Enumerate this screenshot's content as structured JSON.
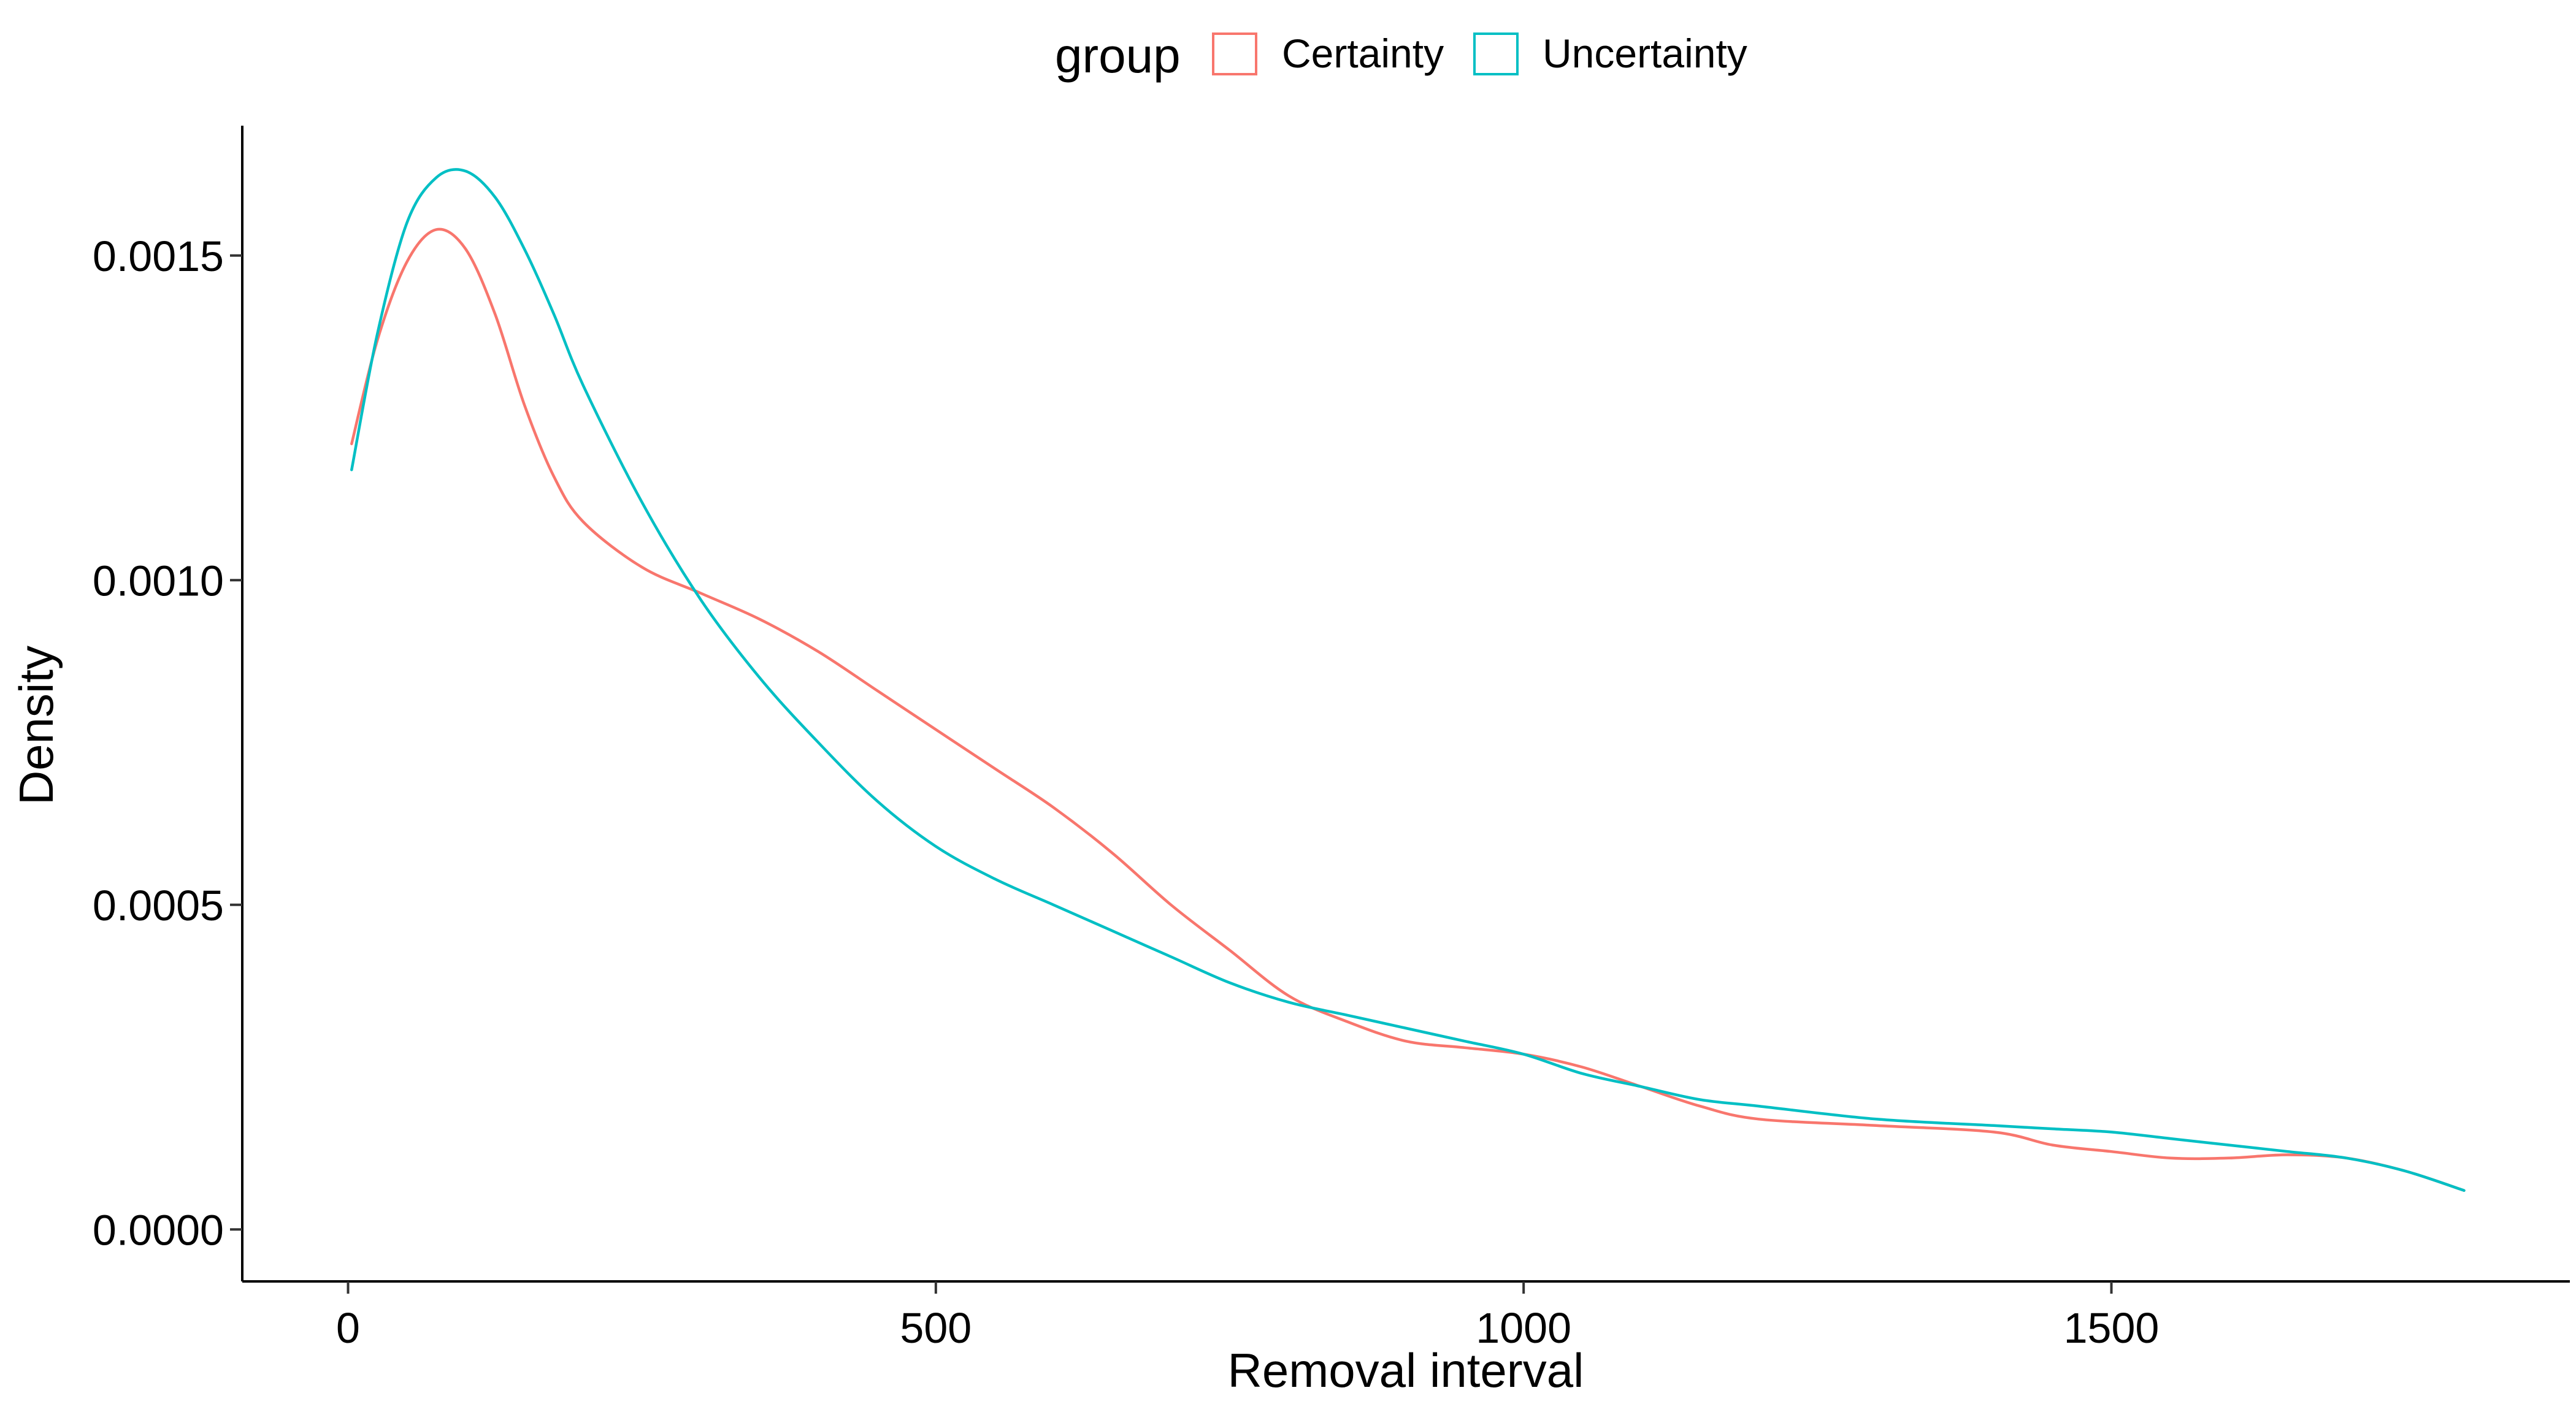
{
  "chart_data": {
    "type": "line",
    "title": "",
    "xlabel": "Removal interval",
    "ylabel": "Density",
    "xlim": [
      -90,
      1890
    ],
    "ylim": [
      -8e-05,
      0.0017
    ],
    "x_ticks": [
      0,
      500,
      1000,
      1500
    ],
    "x_tick_labels": [
      "0",
      "500",
      "1000",
      "1500"
    ],
    "y_ticks": [
      0,
      0.0005,
      0.001,
      0.0015
    ],
    "y_tick_labels": [
      "0.0000",
      "0.0005",
      "0.0010",
      "0.0015"
    ],
    "grid": false,
    "legend": {
      "title": "group",
      "position": "top",
      "entries": [
        "Certainty",
        "Uncertainty"
      ]
    },
    "series": [
      {
        "name": "Certainty",
        "color": "#F8766D",
        "x": [
          3,
          25,
          50,
          75,
          100,
          125,
          150,
          175,
          200,
          250,
          300,
          350,
          400,
          450,
          500,
          550,
          600,
          650,
          700,
          750,
          800,
          850,
          900,
          950,
          1000,
          1050,
          1100,
          1150,
          1200,
          1300,
          1400,
          1450,
          1500,
          1550,
          1600,
          1650,
          1700,
          1750,
          1800
        ],
        "y": [
          0.00121,
          0.00137,
          0.00149,
          0.00154,
          0.00151,
          0.00141,
          0.00127,
          0.00116,
          0.00109,
          0.00102,
          0.00098,
          0.00094,
          0.00089,
          0.00083,
          0.00077,
          0.00071,
          0.00065,
          0.00058,
          0.0005,
          0.00043,
          0.00036,
          0.00032,
          0.00029,
          0.00028,
          0.00027,
          0.00025,
          0.00022,
          0.00019,
          0.00017,
          0.00016,
          0.00015,
          0.00013,
          0.00012,
          0.00011,
          0.00011,
          0.000115,
          0.00011,
          9e-05,
          6e-05
        ]
      },
      {
        "name": "Uncertainty",
        "color": "#00BFC4",
        "x": [
          3,
          25,
          50,
          75,
          100,
          125,
          150,
          175,
          200,
          250,
          300,
          350,
          400,
          450,
          500,
          550,
          600,
          650,
          700,
          750,
          800,
          850,
          900,
          950,
          1000,
          1050,
          1100,
          1150,
          1200,
          1300,
          1400,
          1450,
          1500,
          1550,
          1600,
          1650,
          1700,
          1750,
          1800
        ],
        "y": [
          0.00117,
          0.00138,
          0.00155,
          0.00162,
          0.00163,
          0.00159,
          0.00151,
          0.00141,
          0.0013,
          0.00112,
          0.00097,
          0.00085,
          0.00075,
          0.00066,
          0.00059,
          0.00054,
          0.0005,
          0.00046,
          0.00042,
          0.00038,
          0.00035,
          0.00033,
          0.00031,
          0.00029,
          0.00027,
          0.00024,
          0.00022,
          0.0002,
          0.00019,
          0.00017,
          0.00016,
          0.000155,
          0.00015,
          0.00014,
          0.00013,
          0.00012,
          0.00011,
          9e-05,
          6e-05
        ]
      }
    ]
  }
}
